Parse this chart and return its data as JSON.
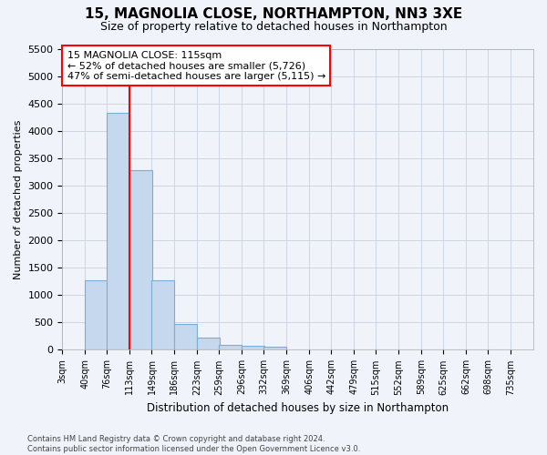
{
  "title1": "15, MAGNOLIA CLOSE, NORTHAMPTON, NN3 3XE",
  "title2": "Size of property relative to detached houses in Northampton",
  "xlabel": "Distribution of detached houses by size in Northampton",
  "ylabel": "Number of detached properties",
  "bins": [
    3,
    40,
    76,
    113,
    149,
    186,
    223,
    259,
    296,
    332,
    369,
    406,
    442,
    479,
    515,
    552,
    589,
    625,
    662,
    698,
    735
  ],
  "bin_width": 37,
  "values": [
    0,
    1270,
    4340,
    3290,
    1280,
    480,
    220,
    90,
    80,
    55,
    0,
    0,
    0,
    0,
    0,
    0,
    0,
    0,
    0,
    0
  ],
  "bar_color": "#c5d8ee",
  "bar_edge_color": "#7aaed4",
  "grid_color": "#c8d0e0",
  "vline_x": 113,
  "vline_color": "red",
  "annotation_title": "15 MAGNOLIA CLOSE: 115sqm",
  "annotation_line1": "← 52% of detached houses are smaller (5,726)",
  "annotation_line2": "47% of semi-detached houses are larger (5,115) →",
  "annotation_box_color": "white",
  "annotation_box_edge": "red",
  "ylim": [
    0,
    5500
  ],
  "yticks": [
    0,
    500,
    1000,
    1500,
    2000,
    2500,
    3000,
    3500,
    4000,
    4500,
    5000,
    5500
  ],
  "footer1": "Contains HM Land Registry data © Crown copyright and database right 2024.",
  "footer2": "Contains public sector information licensed under the Open Government Licence v3.0.",
  "bg_color": "#f0f4fa",
  "title1_fontsize": 11,
  "title2_fontsize": 9
}
